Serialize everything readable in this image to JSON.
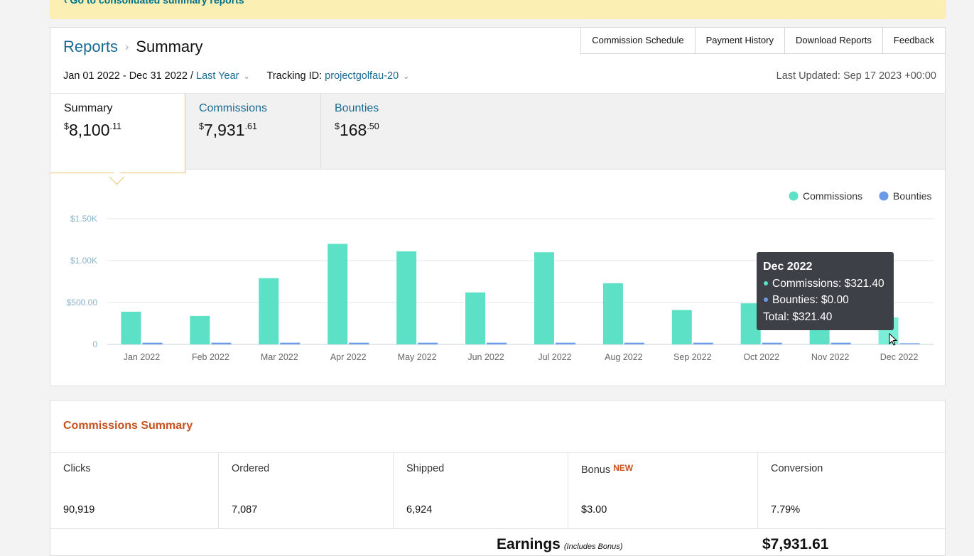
{
  "banner": {
    "link_text": "‹ Go to consolidated summary reports"
  },
  "header": {
    "breadcrumb_root": "Reports",
    "breadcrumb_sep": "›",
    "breadcrumb_current": "Summary",
    "buttons": [
      "Commission Schedule",
      "Payment History",
      "Download Reports",
      "Feedback"
    ]
  },
  "filters": {
    "date_range": "Jan 01 2022 - Dec 31 2022 /",
    "period": "Last Year",
    "tracking_label": "Tracking ID:",
    "tracking_id": "projectgolfau-20",
    "last_updated": "Last Updated: Sep 17 2023 +00:00"
  },
  "tabs": [
    {
      "label": "Summary",
      "currency": "$",
      "whole": "8,100",
      "cents": ".11"
    },
    {
      "label": "Commissions",
      "currency": "$",
      "whole": "7,931",
      "cents": ".61"
    },
    {
      "label": "Bounties",
      "currency": "$",
      "whole": "168",
      "cents": ".50"
    }
  ],
  "chart_data": {
    "type": "bar",
    "categories": [
      "Jan 2022",
      "Feb 2022",
      "Mar 2022",
      "Apr 2022",
      "May 2022",
      "Jun 2022",
      "Jul 2022",
      "Aug 2022",
      "Sep 2022",
      "Oct 2022",
      "Nov 2022",
      "Dec 2022"
    ],
    "series": [
      {
        "name": "Commissions",
        "color": "#5ce1c6",
        "values": [
          390,
          340,
          790,
          1200,
          1110,
          620,
          1100,
          730,
          410,
          490,
          480,
          321.4
        ]
      },
      {
        "name": "Bounties",
        "color": "#6b9be6",
        "values": [
          20,
          20,
          20,
          20,
          20,
          20,
          20,
          20,
          20,
          20,
          20,
          0
        ]
      }
    ],
    "y_ticks": [
      "0",
      "$500.00",
      "$1.00K",
      "$1.50K"
    ],
    "ylim": [
      0,
      1500
    ],
    "grid": true,
    "legend": "top-right"
  },
  "tooltip": {
    "title": "Dec 2022",
    "commissions": "Commissions: $321.40",
    "bounties": "Bounties: $0.00",
    "total": "Total: $321.40"
  },
  "summary": {
    "title": "Commissions Summary",
    "stats": [
      {
        "label": "Clicks",
        "value": "90,919"
      },
      {
        "label": "Ordered",
        "value": "7,087"
      },
      {
        "label": "Shipped",
        "value": "6,924"
      },
      {
        "label": "Bonus",
        "badge": "NEW",
        "value": "$3.00"
      },
      {
        "label": "Conversion",
        "value": "7.79%"
      }
    ],
    "earnings_label": "Earnings",
    "earnings_note": "(Includes Bonus)",
    "earnings_value": "$7,931.61"
  }
}
